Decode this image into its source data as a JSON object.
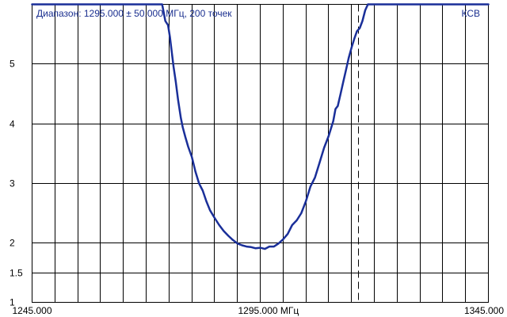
{
  "header": {
    "range_text": "Диапазон: 1295.000 ± 50.000 МГц, 200 точек",
    "parameter": "КСВ"
  },
  "colors": {
    "trace": "#1a2f99",
    "header_text": "#1a2f8f",
    "grid": "#000000",
    "background": "#ffffff"
  },
  "chart_data": {
    "type": "line",
    "title": "",
    "xlabel": "",
    "ylabel": "",
    "x_unit": "МГц",
    "xlim": [
      1245,
      1345
    ],
    "ylim": [
      1,
      6
    ],
    "grid": true,
    "x_gridlines": [
      1245,
      1250,
      1255,
      1260,
      1265,
      1270,
      1275,
      1280,
      1285,
      1290,
      1295,
      1300,
      1305,
      1310,
      1315,
      1320,
      1325,
      1330,
      1335,
      1340,
      1345
    ],
    "y_gridlines": [
      1,
      1.5,
      2,
      3,
      4,
      5,
      6
    ],
    "x_tick_labels": [
      {
        "value": 1245,
        "text": "1245.000"
      },
      {
        "value": 1295,
        "text": "1295.000 МГц"
      },
      {
        "value": 1345,
        "text": "1345.000"
      }
    ],
    "y_tick_labels": [
      {
        "value": 1,
        "text": "1"
      },
      {
        "value": 1.5,
        "text": "1.5"
      },
      {
        "value": 2,
        "text": "2"
      },
      {
        "value": 3,
        "text": "3"
      },
      {
        "value": 4,
        "text": "4"
      },
      {
        "value": 5,
        "text": "5"
      }
    ],
    "marker_x": 1316.6,
    "series": [
      {
        "x": [
          1245,
          1253,
          1262,
          1270,
          1273.5,
          1274.2,
          1274.8,
          1275.2,
          1275.6,
          1276.0,
          1276.5,
          1277.0,
          1277.6,
          1278.0,
          1278.6,
          1279.2,
          1280.0,
          1280.8,
          1281.6,
          1282.4,
          1283.2,
          1284.0,
          1285.0,
          1286.0,
          1287.0,
          1288.0,
          1289.0,
          1290.0,
          1291.0,
          1292.0,
          1293.0,
          1294.0,
          1295.0,
          1296.0,
          1297.0,
          1298.0,
          1299.0,
          1300.0,
          1301.0,
          1302.0,
          1303.0,
          1304.0,
          1305.0,
          1306.0,
          1307.0,
          1308.0,
          1309.0,
          1310.0,
          1311.0,
          1311.5,
          1312.0,
          1312.6,
          1313.2,
          1313.8,
          1314.4,
          1315.0,
          1315.6,
          1316.2,
          1316.8,
          1317.4,
          1318.0,
          1318.6,
          1319.0,
          1319.4,
          1326,
          1335,
          1345
        ],
        "y": [
          6.0,
          6.0,
          6.0,
          6.0,
          6.0,
          5.72,
          5.65,
          5.45,
          5.2,
          4.95,
          4.7,
          4.4,
          4.1,
          3.95,
          3.78,
          3.62,
          3.45,
          3.2,
          3.0,
          2.88,
          2.7,
          2.55,
          2.42,
          2.3,
          2.2,
          2.12,
          2.05,
          1.99,
          1.96,
          1.94,
          1.93,
          1.91,
          1.92,
          1.9,
          1.94,
          1.94,
          1.99,
          2.06,
          2.15,
          2.3,
          2.38,
          2.5,
          2.7,
          2.95,
          3.1,
          3.35,
          3.6,
          3.8,
          4.05,
          4.25,
          4.3,
          4.5,
          4.7,
          4.9,
          5.1,
          5.27,
          5.42,
          5.55,
          5.6,
          5.72,
          5.9,
          6.0,
          6.0,
          6.0,
          6.0,
          6.0,
          6.0
        ]
      }
    ]
  }
}
